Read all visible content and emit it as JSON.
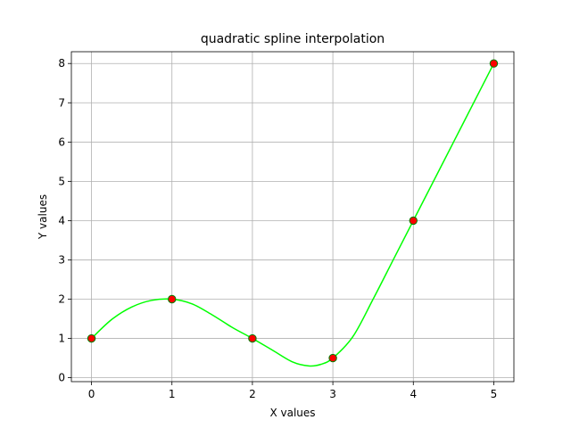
{
  "chart_data": {
    "type": "line",
    "title": "quadratic spline interpolation",
    "xlabel": "X values",
    "ylabel": "Y values",
    "xlim": [
      -0.25,
      5.25
    ],
    "ylim": [
      -0.1,
      8.3
    ],
    "grid": true,
    "x_ticks": [
      0,
      1,
      2,
      3,
      4,
      5
    ],
    "y_ticks": [
      0,
      1,
      2,
      3,
      4,
      5,
      6,
      7,
      8
    ],
    "colors": {
      "curve": "#00ff00",
      "points": "#ff0000",
      "point_edge": "#008000"
    },
    "series": [
      {
        "type": "scatter",
        "x": [
          0,
          1,
          2,
          3,
          4,
          5
        ],
        "y": [
          1,
          2,
          1,
          0.5,
          4,
          8
        ]
      },
      {
        "type": "line",
        "x": [
          0,
          0.25,
          0.5,
          0.75,
          1.0,
          1.25,
          1.5,
          1.75,
          2.0,
          2.25,
          2.5,
          2.7,
          2.85,
          3.0,
          3.25,
          3.5,
          3.75,
          4.0,
          4.25,
          4.5,
          4.75,
          5.0
        ],
        "y": [
          1.0,
          1.48,
          1.8,
          1.97,
          2.0,
          1.88,
          1.6,
          1.28,
          1.0,
          0.7,
          0.4,
          0.3,
          0.34,
          0.5,
          1.05,
          2.0,
          3.0,
          4.0,
          5.0,
          6.0,
          7.0,
          8.0
        ]
      }
    ]
  }
}
